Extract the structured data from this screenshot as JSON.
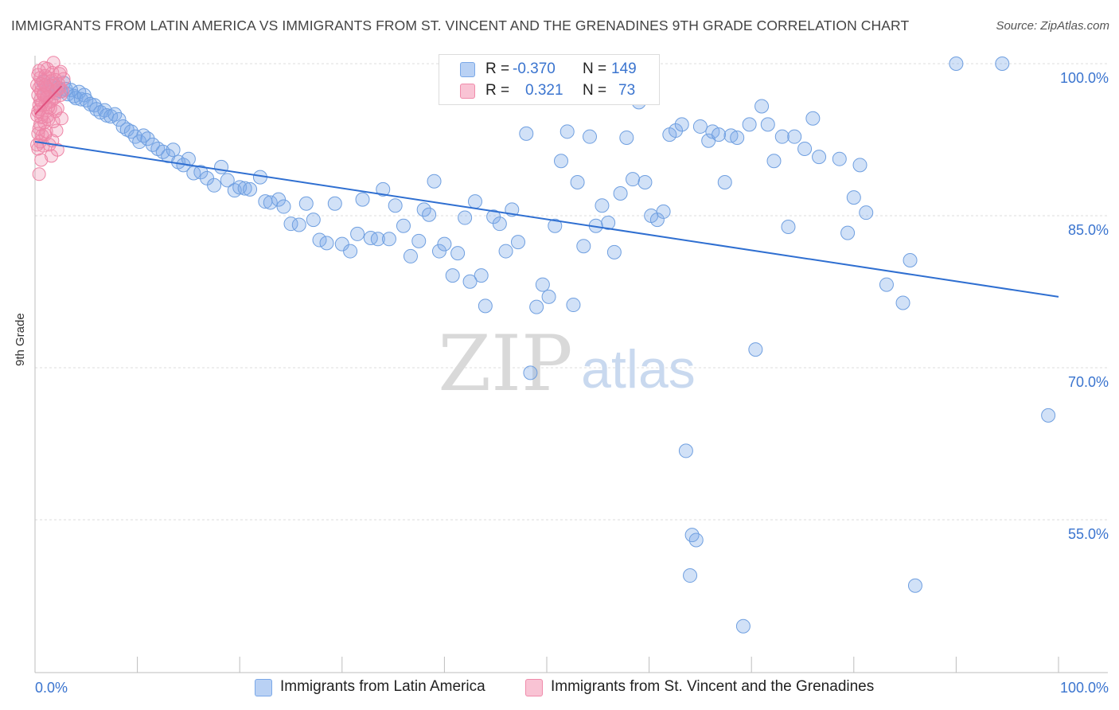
{
  "title": "IMMIGRANTS FROM LATIN AMERICA VS IMMIGRANTS FROM ST. VINCENT AND THE GRENADINES 9TH GRADE CORRELATION CHART",
  "source": "Source: ZipAtlas.com",
  "watermark": {
    "zip": "ZIP",
    "atlas": "atlas"
  },
  "legend": {
    "rows": [
      {
        "r_label": "R =",
        "r_value": "-0.370",
        "n_label": "N =",
        "n_value": "149"
      },
      {
        "r_label": "R =",
        "r_value": "0.321",
        "n_label": "N =",
        "n_value": "73"
      }
    ]
  },
  "bottom_legend": {
    "latin": "Immigrants from Latin America",
    "stvincent": "Immigrants from St. Vincent and the Grenadines"
  },
  "colors": {
    "blue": "#7aa8e8",
    "blue_line": "#2f6fd1",
    "pink": "#f08bab",
    "pink_line": "#e0507e",
    "grid": "#dddddd",
    "tick_label": "#3a74cf"
  },
  "chart_data": {
    "type": "scatter",
    "title": "IMMIGRANTS FROM LATIN AMERICA VS IMMIGRANTS FROM ST. VINCENT AND THE GRENADINES 9TH GRADE CORRELATION CHART",
    "xlabel": "",
    "ylabel": "9th Grade",
    "xlim": [
      0,
      100
    ],
    "ylim": [
      40,
      101.5
    ],
    "x_tick_labels": [
      "0.0%",
      "100.0%"
    ],
    "y_ticks": [
      55,
      70,
      85,
      100
    ],
    "y_tick_labels": [
      "55.0%",
      "70.0%",
      "85.0%",
      "100.0%"
    ],
    "grid": true,
    "series": [
      {
        "name": "Immigrants from Latin America",
        "color": "#7aa8e8",
        "trend": {
          "x": [
            0,
            100
          ],
          "y": [
            92.3,
            77.0
          ]
        },
        "points": [
          [
            0.8,
            98.2
          ],
          [
            1.2,
            97.4
          ],
          [
            1.5,
            97.8
          ],
          [
            1.8,
            98.0
          ],
          [
            2.0,
            97.1
          ],
          [
            2.2,
            97.6
          ],
          [
            2.5,
            97.3
          ],
          [
            2.8,
            98.1
          ],
          [
            3.0,
            97.5
          ],
          [
            3.2,
            97.0
          ],
          [
            3.5,
            97.4
          ],
          [
            3.8,
            96.8
          ],
          [
            4.0,
            96.6
          ],
          [
            4.3,
            97.2
          ],
          [
            4.5,
            96.5
          ],
          [
            4.8,
            96.9
          ],
          [
            5.0,
            96.4
          ],
          [
            5.4,
            96.0
          ],
          [
            5.8,
            95.9
          ],
          [
            6.0,
            95.5
          ],
          [
            6.4,
            95.2
          ],
          [
            6.8,
            95.4
          ],
          [
            7.0,
            94.9
          ],
          [
            7.4,
            94.8
          ],
          [
            7.8,
            95.0
          ],
          [
            8.2,
            94.5
          ],
          [
            8.6,
            93.8
          ],
          [
            9.0,
            93.5
          ],
          [
            9.4,
            93.3
          ],
          [
            9.8,
            92.8
          ],
          [
            10.2,
            92.3
          ],
          [
            10.6,
            92.9
          ],
          [
            11.0,
            92.6
          ],
          [
            11.5,
            92.0
          ],
          [
            12.0,
            91.6
          ],
          [
            12.5,
            91.3
          ],
          [
            13.0,
            90.9
          ],
          [
            13.5,
            91.5
          ],
          [
            14.0,
            90.3
          ],
          [
            14.5,
            90.0
          ],
          [
            15.0,
            90.6
          ],
          [
            15.5,
            89.2
          ],
          [
            16.2,
            89.3
          ],
          [
            16.8,
            88.7
          ],
          [
            17.5,
            88.0
          ],
          [
            18.2,
            89.8
          ],
          [
            18.8,
            88.5
          ],
          [
            19.5,
            87.5
          ],
          [
            20.0,
            87.8
          ],
          [
            20.5,
            87.7
          ],
          [
            21.0,
            87.6
          ],
          [
            22.0,
            88.8
          ],
          [
            22.5,
            86.4
          ],
          [
            23.0,
            86.3
          ],
          [
            23.8,
            86.6
          ],
          [
            24.3,
            85.9
          ],
          [
            25.0,
            84.2
          ],
          [
            25.8,
            84.1
          ],
          [
            26.5,
            86.2
          ],
          [
            27.2,
            84.6
          ],
          [
            27.8,
            82.6
          ],
          [
            28.5,
            82.3
          ],
          [
            29.3,
            86.2
          ],
          [
            30.0,
            82.2
          ],
          [
            30.8,
            81.5
          ],
          [
            31.5,
            83.2
          ],
          [
            32.0,
            86.6
          ],
          [
            32.8,
            82.8
          ],
          [
            33.5,
            82.7
          ],
          [
            34.0,
            87.6
          ],
          [
            34.6,
            82.7
          ],
          [
            35.2,
            86.0
          ],
          [
            36.0,
            84.0
          ],
          [
            36.7,
            81.0
          ],
          [
            37.5,
            82.5
          ],
          [
            38.0,
            85.6
          ],
          [
            38.5,
            85.1
          ],
          [
            39.0,
            88.4
          ],
          [
            39.5,
            81.5
          ],
          [
            40.0,
            82.2
          ],
          [
            40.8,
            79.1
          ],
          [
            41.3,
            81.3
          ],
          [
            42.0,
            84.8
          ],
          [
            42.5,
            78.5
          ],
          [
            43.0,
            86.4
          ],
          [
            43.6,
            79.1
          ],
          [
            44.0,
            76.1
          ],
          [
            44.8,
            84.9
          ],
          [
            45.4,
            84.2
          ],
          [
            46.0,
            81.5
          ],
          [
            46.6,
            85.6
          ],
          [
            47.2,
            82.4
          ],
          [
            48.0,
            93.1
          ],
          [
            48.4,
            69.5
          ],
          [
            49.0,
            76.0
          ],
          [
            49.6,
            78.2
          ],
          [
            50.2,
            77.0
          ],
          [
            50.8,
            84.0
          ],
          [
            51.4,
            90.4
          ],
          [
            52.0,
            93.3
          ],
          [
            52.6,
            76.2
          ],
          [
            53.0,
            88.3
          ],
          [
            53.6,
            82.0
          ],
          [
            54.2,
            92.8
          ],
          [
            54.8,
            84.0
          ],
          [
            55.4,
            86.0
          ],
          [
            56.0,
            84.3
          ],
          [
            56.6,
            81.4
          ],
          [
            57.2,
            87.2
          ],
          [
            57.8,
            92.7
          ],
          [
            58.4,
            88.6
          ],
          [
            59.0,
            96.2
          ],
          [
            59.6,
            88.3
          ],
          [
            60.2,
            85.0
          ],
          [
            60.8,
            84.6
          ],
          [
            61.4,
            85.4
          ],
          [
            62.0,
            93.0
          ],
          [
            62.6,
            93.4
          ],
          [
            63.2,
            94.0
          ],
          [
            63.6,
            61.8
          ],
          [
            64.2,
            53.5
          ],
          [
            64.0,
            49.5
          ],
          [
            64.6,
            53.0
          ],
          [
            65.0,
            93.8
          ],
          [
            65.8,
            92.4
          ],
          [
            66.2,
            93.3
          ],
          [
            66.8,
            93.0
          ],
          [
            67.4,
            88.3
          ],
          [
            68.0,
            92.9
          ],
          [
            68.6,
            92.7
          ],
          [
            69.2,
            44.5
          ],
          [
            69.8,
            94.0
          ],
          [
            70.4,
            71.8
          ],
          [
            71.0,
            95.8
          ],
          [
            71.6,
            94.0
          ],
          [
            72.2,
            90.4
          ],
          [
            73.0,
            92.8
          ],
          [
            73.6,
            83.9
          ],
          [
            74.2,
            92.8
          ],
          [
            75.2,
            91.6
          ],
          [
            76.0,
            94.6
          ],
          [
            76.6,
            90.8
          ],
          [
            78.6,
            90.6
          ],
          [
            79.4,
            83.3
          ],
          [
            80.0,
            86.8
          ],
          [
            80.6,
            90.0
          ],
          [
            81.2,
            85.3
          ],
          [
            83.2,
            78.2
          ],
          [
            84.8,
            76.4
          ],
          [
            85.5,
            80.6
          ],
          [
            86.0,
            48.5
          ],
          [
            90.0,
            100.0
          ],
          [
            94.5,
            100.0
          ],
          [
            99.0,
            65.3
          ]
        ]
      },
      {
        "name": "Immigrants from St. Vincent and the Grenadines",
        "color": "#f08bab",
        "trend": {
          "x": [
            0,
            2.6
          ],
          "y": [
            95.0,
            97.8
          ]
        },
        "points": [
          [
            0.3,
            98.9
          ],
          [
            0.4,
            97.6
          ],
          [
            0.5,
            96.4
          ],
          [
            0.3,
            95.3
          ],
          [
            0.6,
            94.7
          ],
          [
            0.4,
            93.6
          ],
          [
            0.7,
            92.9
          ],
          [
            0.5,
            92.3
          ],
          [
            0.3,
            91.6
          ],
          [
            0.6,
            90.5
          ],
          [
            0.4,
            89.1
          ],
          [
            0.8,
            98.3
          ],
          [
            0.9,
            97.1
          ],
          [
            1.0,
            96.0
          ],
          [
            0.7,
            95.0
          ],
          [
            0.9,
            94.2
          ],
          [
            1.1,
            93.3
          ],
          [
            0.8,
            91.9
          ],
          [
            1.2,
            99.5
          ],
          [
            1.3,
            98.6
          ],
          [
            1.4,
            97.5
          ],
          [
            1.1,
            96.6
          ],
          [
            1.5,
            95.6
          ],
          [
            1.3,
            94.5
          ],
          [
            1.0,
            93.0
          ],
          [
            1.4,
            92.0
          ],
          [
            1.6,
            90.9
          ],
          [
            1.8,
            100.1
          ],
          [
            1.7,
            99.1
          ],
          [
            1.9,
            97.8
          ],
          [
            1.6,
            96.3
          ],
          [
            2.0,
            95.3
          ],
          [
            1.8,
            94.3
          ],
          [
            2.1,
            93.4
          ],
          [
            1.7,
            92.4
          ],
          [
            2.2,
            91.5
          ],
          [
            2.4,
            99.0
          ],
          [
            2.3,
            98.0
          ],
          [
            2.5,
            96.9
          ],
          [
            2.2,
            95.6
          ],
          [
            2.6,
            94.6
          ],
          [
            2.8,
            98.5
          ],
          [
            2.7,
            97.3
          ],
          [
            0.2,
            97.9
          ],
          [
            0.3,
            96.9
          ],
          [
            0.4,
            95.9
          ],
          [
            0.2,
            94.9
          ],
          [
            0.5,
            94.0
          ],
          [
            0.3,
            93.1
          ],
          [
            0.2,
            92.0
          ],
          [
            0.5,
            98.6
          ],
          [
            0.6,
            97.3
          ],
          [
            0.7,
            96.1
          ],
          [
            0.4,
            99.3
          ],
          [
            0.6,
            98.0
          ],
          [
            0.8,
            97.0
          ],
          [
            1.0,
            98.8
          ],
          [
            1.1,
            97.7
          ],
          [
            1.2,
            96.7
          ],
          [
            1.3,
            95.7
          ],
          [
            1.5,
            98.2
          ],
          [
            1.6,
            97.2
          ],
          [
            1.4,
            96.2
          ],
          [
            1.9,
            96.6
          ],
          [
            2.0,
            98.4
          ],
          [
            2.1,
            97.4
          ],
          [
            2.4,
            97.6
          ],
          [
            0.9,
            99.6
          ],
          [
            0.5,
            95.5
          ],
          [
            1.2,
            94.8
          ],
          [
            0.8,
            96.9
          ],
          [
            2.5,
            99.2
          ],
          [
            1.0,
            97.9
          ]
        ]
      }
    ]
  }
}
